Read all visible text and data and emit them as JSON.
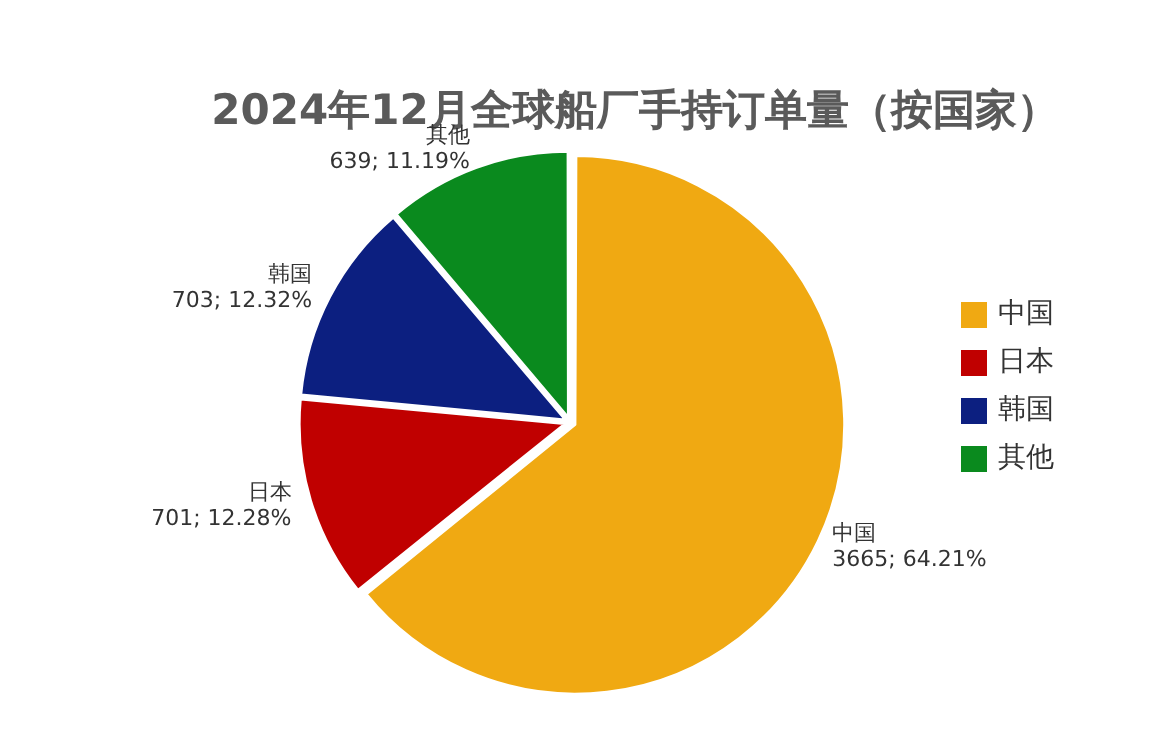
{
  "chart_data": {
    "type": "pie",
    "title": "2024年12月全球船厂手持订单量（按国家）",
    "categories": [
      "中国",
      "日本",
      "韩国",
      "其他"
    ],
    "values": [
      3665,
      701,
      703,
      639
    ],
    "value_labels": [
      "3665; 64.21%",
      "701; 12.28%",
      "703; 12.32%",
      "639; 11.19%"
    ],
    "colors": [
      "#f0a912",
      "#c00000",
      "#0c1f80",
      "#0a8a1e"
    ],
    "legend": "right"
  }
}
